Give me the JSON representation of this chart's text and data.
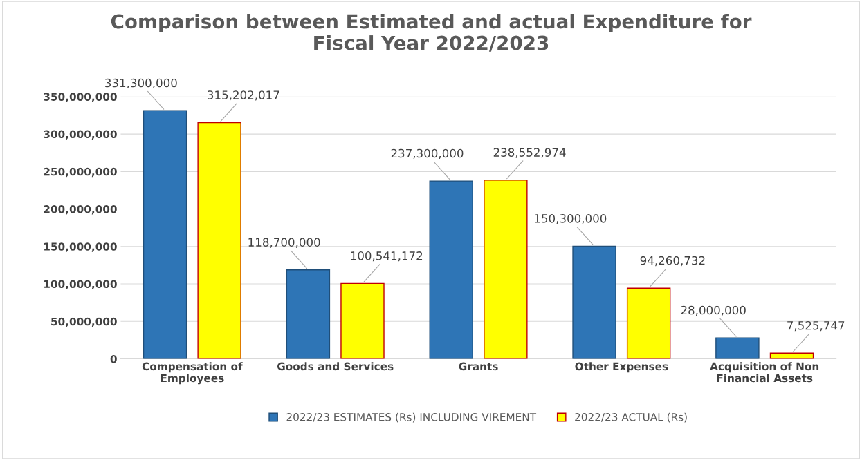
{
  "chart_data": {
    "type": "bar",
    "title": "Comparison between Estimated and actual Expenditure for\nFiscal Year 2022/2023",
    "categories": [
      "Compensation of\nEmployees",
      "Goods and Services",
      "Grants",
      "Other Expenses",
      "Acquisition of Non\nFinancial Assets"
    ],
    "series": [
      {
        "name": "2022/23 ESTIMATES (Rs) INCLUDING VIREMENT",
        "color": "#2e75b6",
        "values": [
          331300000,
          118700000,
          237300000,
          150300000,
          28000000
        ],
        "value_labels": [
          "331,300,000",
          "118,700,000",
          "237,300,000",
          "150,300,000",
          "28,000,000"
        ]
      },
      {
        "name": "2022/23 ACTUAL (Rs)",
        "color": "#ffff00",
        "values": [
          315202017,
          100541172,
          238552974,
          94260732,
          7525747
        ],
        "value_labels": [
          "315,202,017",
          "100,541,172",
          "238,552,974",
          "94,260,732",
          "7,525,747"
        ]
      }
    ],
    "ylim": [
      0,
      350000000
    ],
    "yticks": [
      {
        "value": 0,
        "label": "0"
      },
      {
        "value": 50000000,
        "label": "50,000,000"
      },
      {
        "value": 100000000,
        "label": "100,000,000"
      },
      {
        "value": 150000000,
        "label": "150,000,000"
      },
      {
        "value": 200000000,
        "label": "200,000,000"
      },
      {
        "value": 250000000,
        "label": "250,000,000"
      },
      {
        "value": 300000000,
        "label": "300,000,000"
      },
      {
        "value": 350000000,
        "label": "350,000,000"
      }
    ],
    "grid": "y",
    "legend": "bottom"
  }
}
